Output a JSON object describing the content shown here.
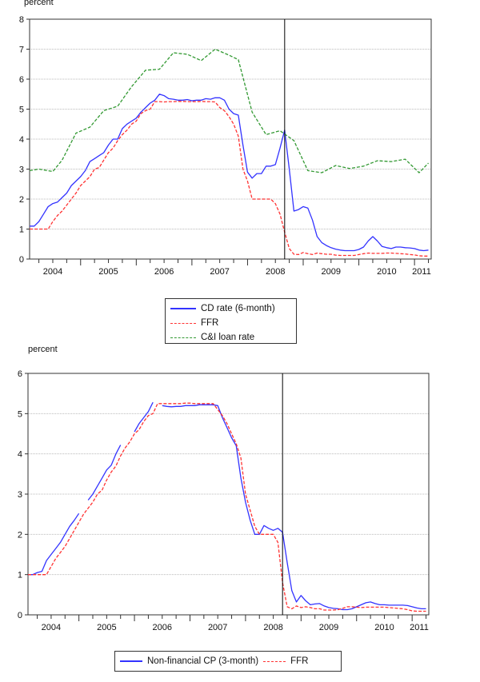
{
  "chart_data": [
    {
      "type": "line",
      "ylabel": "percent",
      "ylim": [
        0,
        8
      ],
      "yticks": [
        "0",
        "1",
        "2",
        "3",
        "4",
        "5",
        "6",
        "7",
        "8"
      ],
      "xlim": [
        "2004-02",
        "2011-04"
      ],
      "xtick_labels": [
        "2004",
        "2005",
        "2006",
        "2007",
        "2008",
        "2009",
        "2010",
        "2011"
      ],
      "grid": true,
      "vline": "2008-09",
      "legend_position": "bottom-center",
      "series": [
        {
          "name": "CD rate (6-month)",
          "color": "#3333ff",
          "style": "solid",
          "start": "2004-02",
          "frequency": "monthly",
          "values": [
            1.1,
            1.1,
            1.25,
            1.5,
            1.75,
            1.85,
            1.9,
            2.05,
            2.2,
            2.45,
            2.6,
            2.75,
            2.95,
            3.25,
            3.35,
            3.45,
            3.55,
            3.8,
            4.0,
            4.0,
            4.35,
            4.5,
            4.6,
            4.7,
            4.9,
            5.05,
            5.2,
            5.3,
            5.5,
            5.45,
            5.35,
            5.33,
            5.3,
            5.3,
            5.32,
            5.28,
            5.3,
            5.3,
            5.35,
            5.33,
            5.38,
            5.38,
            5.3,
            5.0,
            4.85,
            4.8,
            3.8,
            2.9,
            2.7,
            2.85,
            2.85,
            3.1,
            3.1,
            3.15,
            3.7,
            4.3,
            3.0,
            1.6,
            1.65,
            1.75,
            1.7,
            1.3,
            0.75,
            0.55,
            0.45,
            0.38,
            0.33,
            0.3,
            0.28,
            0.28,
            0.28,
            0.32,
            0.4,
            0.6,
            0.75,
            0.6,
            0.42,
            0.38,
            0.35,
            0.4,
            0.4,
            0.38,
            0.37,
            0.35,
            0.3,
            0.28,
            0.3
          ]
        },
        {
          "name": "FFR",
          "color": "#ff3333",
          "style": "dashed",
          "start": "2004-02",
          "frequency": "monthly",
          "values": [
            1.0,
            1.0,
            1.0,
            1.0,
            1.0,
            1.25,
            1.45,
            1.6,
            1.8,
            2.0,
            2.2,
            2.45,
            2.6,
            2.75,
            3.0,
            3.05,
            3.3,
            3.55,
            3.7,
            3.95,
            4.15,
            4.3,
            4.5,
            4.6,
            4.85,
            4.95,
            5.0,
            5.25,
            5.25,
            5.24,
            5.25,
            5.25,
            5.26,
            5.26,
            5.25,
            5.25,
            5.25,
            5.26,
            5.25,
            5.25,
            5.24,
            5.05,
            4.95,
            4.75,
            4.5,
            4.1,
            3.0,
            2.6,
            2.0,
            2.0,
            2.0,
            2.0,
            2.0,
            1.85,
            1.5,
            0.9,
            0.35,
            0.16,
            0.15,
            0.22,
            0.18,
            0.15,
            0.2,
            0.18,
            0.16,
            0.16,
            0.13,
            0.12,
            0.12,
            0.12,
            0.12,
            0.15,
            0.18,
            0.2,
            0.19,
            0.19,
            0.19,
            0.2,
            0.2,
            0.19,
            0.18,
            0.17,
            0.15,
            0.14,
            0.11,
            0.1,
            0.1
          ]
        },
        {
          "name": "C&I loan rate",
          "color": "#339933",
          "style": "dashed",
          "points": [
            [
              "2004-02",
              2.95
            ],
            [
              "2004-04",
              3.0
            ],
            [
              "2004-07",
              2.92
            ],
            [
              "2004-09",
              3.3
            ],
            [
              "2004-12",
              4.2
            ],
            [
              "2005-03",
              4.4
            ],
            [
              "2005-06",
              4.95
            ],
            [
              "2005-09",
              5.1
            ],
            [
              "2005-12",
              5.75
            ],
            [
              "2006-03",
              6.3
            ],
            [
              "2006-06",
              6.33
            ],
            [
              "2006-09",
              6.88
            ],
            [
              "2006-12",
              6.83
            ],
            [
              "2007-03",
              6.62
            ],
            [
              "2007-06",
              7.0
            ],
            [
              "2007-09",
              6.8
            ],
            [
              "2007-11",
              6.65
            ],
            [
              "2008-02",
              4.9
            ],
            [
              "2008-05",
              4.15
            ],
            [
              "2008-08",
              4.28
            ],
            [
              "2008-11",
              3.95
            ],
            [
              "2009-02",
              2.95
            ],
            [
              "2009-05",
              2.88
            ],
            [
              "2009-08",
              3.12
            ],
            [
              "2009-11",
              3.02
            ],
            [
              "2010-02",
              3.1
            ],
            [
              "2010-05",
              3.28
            ],
            [
              "2010-08",
              3.25
            ],
            [
              "2010-11",
              3.33
            ],
            [
              "2011-02",
              2.88
            ],
            [
              "2011-04",
              3.2
            ]
          ]
        }
      ]
    },
    {
      "type": "line",
      "ylabel": "percent",
      "ylim": [
        0,
        6
      ],
      "yticks": [
        "0",
        "1",
        "2",
        "3",
        "4",
        "5",
        "6"
      ],
      "xlim": [
        "2004-02",
        "2011-04"
      ],
      "xtick_labels": [
        "2004",
        "2005",
        "2006",
        "2007",
        "2008",
        "2009",
        "2010",
        "2011"
      ],
      "grid": true,
      "vline": "2008-09",
      "legend_position": "bottom-center",
      "series": [
        {
          "name": "Non-financial CP (3-month)",
          "color": "#3333ff",
          "style": "solid",
          "start": "2004-02",
          "frequency": "monthly",
          "values": [
            1.0,
            1.0,
            1.05,
            1.08,
            1.35,
            1.5,
            1.65,
            1.8,
            2.0,
            2.2,
            2.35,
            2.52,
            null,
            2.85,
            3.0,
            3.2,
            3.4,
            3.6,
            3.72,
            4.0,
            4.22,
            null,
            null,
            4.55,
            4.75,
            4.9,
            5.05,
            5.28,
            null,
            5.2,
            5.18,
            5.17,
            5.18,
            5.18,
            5.2,
            5.2,
            5.2,
            5.22,
            5.22,
            5.22,
            5.22,
            5.2,
            4.9,
            4.65,
            4.4,
            4.2,
            3.4,
            2.8,
            2.35,
            2.0,
            2.0,
            2.22,
            2.15,
            2.1,
            2.15,
            2.05,
            1.3,
            0.6,
            0.32,
            0.48,
            0.35,
            0.25,
            0.27,
            0.28,
            0.22,
            0.18,
            0.16,
            0.15,
            0.13,
            0.13,
            0.15,
            0.2,
            0.25,
            0.3,
            0.32,
            0.28,
            0.25,
            0.25,
            0.24,
            0.24,
            0.24,
            0.24,
            0.23,
            0.2,
            0.17,
            0.15,
            0.15
          ]
        },
        {
          "name": "FFR",
          "color": "#ff3333",
          "style": "dashed",
          "start": "2004-02",
          "frequency": "monthly",
          "values": [
            1.0,
            1.0,
            1.0,
            1.0,
            1.0,
            1.2,
            1.4,
            1.55,
            1.7,
            1.9,
            2.1,
            2.3,
            2.5,
            2.65,
            2.8,
            3.0,
            3.1,
            3.35,
            3.55,
            3.7,
            3.95,
            4.15,
            4.3,
            4.5,
            4.6,
            4.8,
            4.95,
            5.0,
            5.25,
            5.25,
            5.25,
            5.25,
            5.25,
            5.25,
            5.26,
            5.26,
            5.25,
            5.25,
            5.25,
            5.25,
            5.25,
            5.1,
            4.95,
            4.75,
            4.5,
            4.25,
            3.9,
            3.0,
            2.6,
            2.2,
            2.0,
            2.0,
            2.0,
            2.0,
            1.8,
            0.8,
            0.2,
            0.15,
            0.22,
            0.18,
            0.2,
            0.18,
            0.15,
            0.15,
            0.12,
            0.12,
            0.12,
            0.13,
            0.16,
            0.2,
            0.2,
            0.19,
            0.18,
            0.19,
            0.19,
            0.19,
            0.19,
            0.19,
            0.18,
            0.17,
            0.16,
            0.15,
            0.13,
            0.1,
            0.09,
            0.09,
            0.09
          ]
        }
      ]
    }
  ]
}
